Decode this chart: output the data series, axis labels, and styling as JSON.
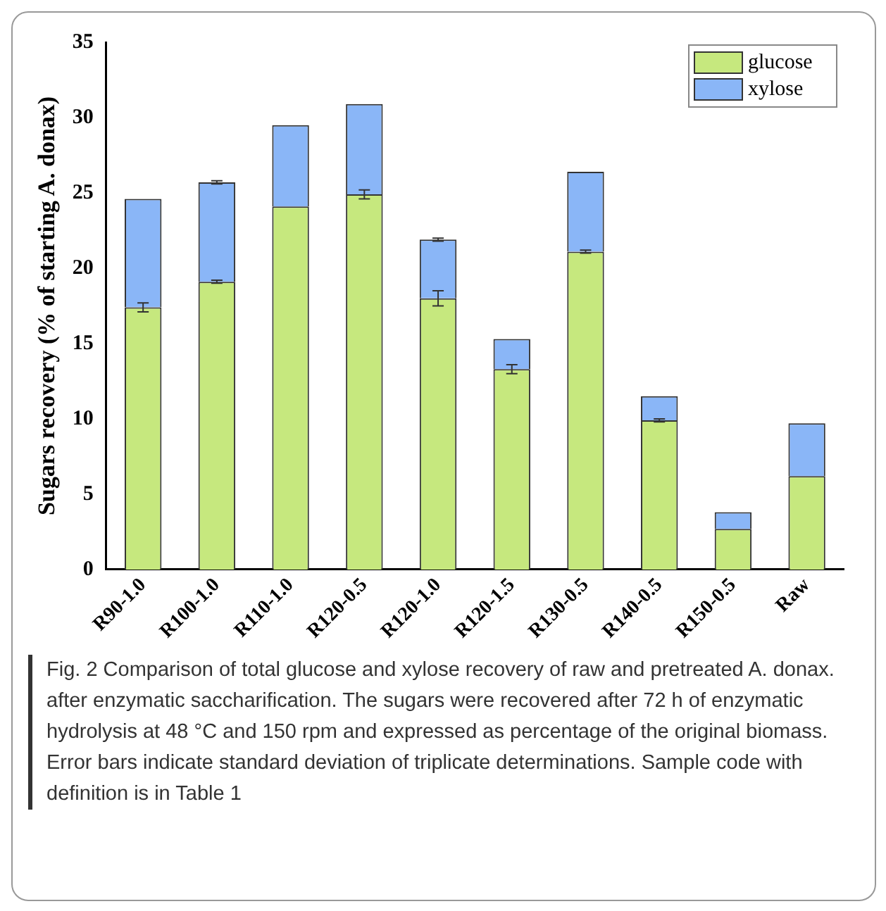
{
  "chart_data": {
    "type": "bar",
    "stacked": true,
    "ylabel": "Sugars recovery (% of starting A. donax)",
    "categories": [
      "R90-1.0",
      "R100-1.0",
      "R110-1.0",
      "R120-0.5",
      "R120-1.0",
      "R120-1.5",
      "R130-0.5",
      "R140-0.5",
      "R150-0.5",
      "Raw"
    ],
    "series": [
      {
        "name": "glucose",
        "color": "#c6e87e",
        "values": [
          17.4,
          19.1,
          24.1,
          24.9,
          18.0,
          13.3,
          21.1,
          9.9,
          2.7,
          6.2
        ],
        "errors": [
          0.3,
          0.1,
          null,
          0.3,
          0.5,
          0.3,
          0.1,
          0.1,
          null,
          null
        ]
      },
      {
        "name": "xylose",
        "color": "#8ab6f7",
        "values": [
          7.2,
          6.6,
          5.4,
          6.0,
          3.9,
          2.0,
          5.3,
          1.6,
          1.1,
          3.5
        ],
        "errors": [
          null,
          0.1,
          null,
          null,
          0.1,
          null,
          null,
          null,
          null,
          null
        ]
      }
    ],
    "ylim": [
      0,
      35
    ],
    "yticks": [
      0,
      5,
      10,
      15,
      20,
      25,
      30,
      35
    ],
    "grid": false,
    "legend": "top right",
    "annotations": [
      "Fig. 2  Comparison of total glucose and xylose recovery of raw and pretreated A. donax. after enzymatic saccharification. The sugars were recovered after 72 h of enzymatic hydrolysis at 48 °C and 150 rpm and expressed as percentage of the original biomass. Error bars indicate standard deviation of triplicate determinations. Sample code with definition is in Table 1"
    ]
  }
}
